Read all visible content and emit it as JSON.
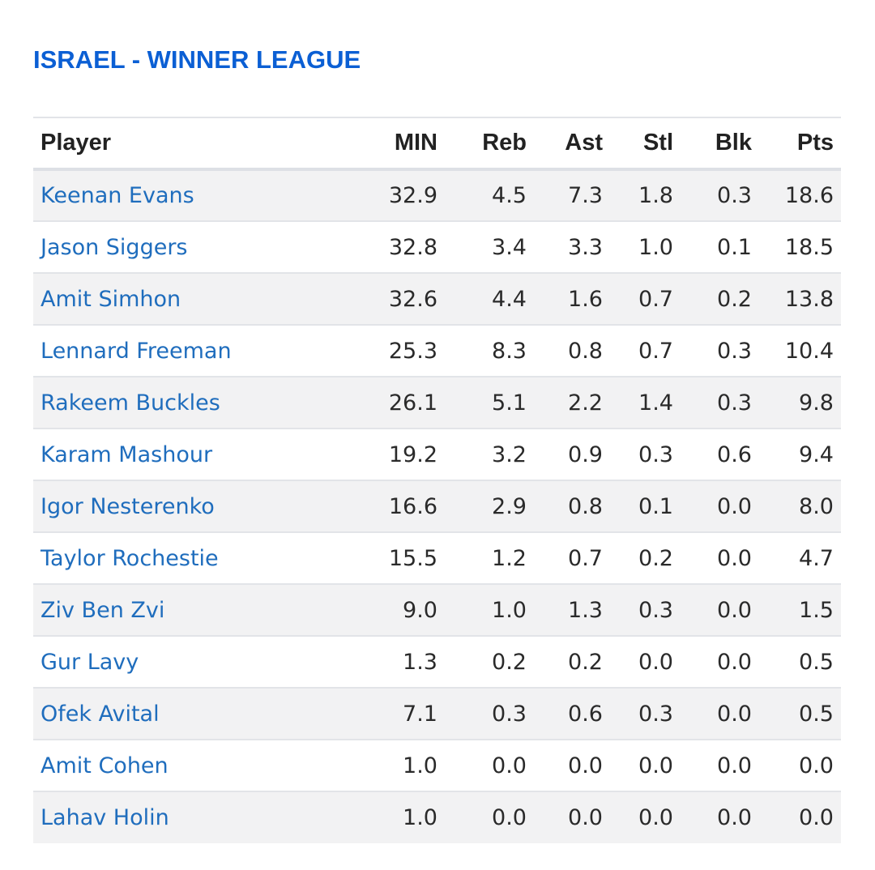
{
  "title": "ISRAEL - WINNER LEAGUE",
  "columns": {
    "player": "Player",
    "min": "MIN",
    "reb": "Reb",
    "ast": "Ast",
    "stl": "Stl",
    "blk": "Blk",
    "pts": "Pts"
  },
  "rows": [
    {
      "player": "Keenan Evans",
      "min": "32.9",
      "reb": "4.5",
      "ast": "7.3",
      "stl": "1.8",
      "blk": "0.3",
      "pts": "18.6"
    },
    {
      "player": "Jason Siggers",
      "min": "32.8",
      "reb": "3.4",
      "ast": "3.3",
      "stl": "1.0",
      "blk": "0.1",
      "pts": "18.5"
    },
    {
      "player": "Amit Simhon",
      "min": "32.6",
      "reb": "4.4",
      "ast": "1.6",
      "stl": "0.7",
      "blk": "0.2",
      "pts": "13.8"
    },
    {
      "player": "Lennard Freeman",
      "min": "25.3",
      "reb": "8.3",
      "ast": "0.8",
      "stl": "0.7",
      "blk": "0.3",
      "pts": "10.4"
    },
    {
      "player": "Rakeem Buckles",
      "min": "26.1",
      "reb": "5.1",
      "ast": "2.2",
      "stl": "1.4",
      "blk": "0.3",
      "pts": "9.8"
    },
    {
      "player": "Karam Mashour",
      "min": "19.2",
      "reb": "3.2",
      "ast": "0.9",
      "stl": "0.3",
      "blk": "0.6",
      "pts": "9.4"
    },
    {
      "player": "Igor Nesterenko",
      "min": "16.6",
      "reb": "2.9",
      "ast": "0.8",
      "stl": "0.1",
      "blk": "0.0",
      "pts": "8.0"
    },
    {
      "player": "Taylor Rochestie",
      "min": "15.5",
      "reb": "1.2",
      "ast": "0.7",
      "stl": "0.2",
      "blk": "0.0",
      "pts": "4.7"
    },
    {
      "player": "Ziv Ben Zvi",
      "min": "9.0",
      "reb": "1.0",
      "ast": "1.3",
      "stl": "0.3",
      "blk": "0.0",
      "pts": "1.5"
    },
    {
      "player": "Gur Lavy",
      "min": "1.3",
      "reb": "0.2",
      "ast": "0.2",
      "stl": "0.0",
      "blk": "0.0",
      "pts": "0.5"
    },
    {
      "player": "Ofek Avital",
      "min": "7.1",
      "reb": "0.3",
      "ast": "0.6",
      "stl": "0.3",
      "blk": "0.0",
      "pts": "0.5"
    },
    {
      "player": "Amit Cohen",
      "min": "1.0",
      "reb": "0.0",
      "ast": "0.0",
      "stl": "0.0",
      "blk": "0.0",
      "pts": "0.0"
    },
    {
      "player": "Lahav Holin",
      "min": "1.0",
      "reb": "0.0",
      "ast": "0.0",
      "stl": "0.0",
      "blk": "0.0",
      "pts": "0.0"
    }
  ],
  "colors": {
    "title": "#0b5fd4",
    "player_link": "#1f6dbd",
    "header_text": "#222222",
    "cell_text": "#2a2a2a",
    "stripe": "#f2f2f3",
    "border": "#e2e4e8"
  }
}
